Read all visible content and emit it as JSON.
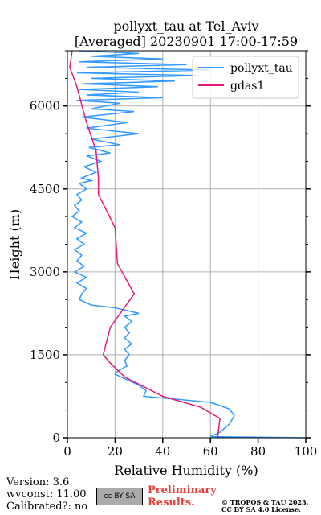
{
  "chart_data": {
    "type": "line",
    "title_line1": "pollyxt_tau at Tel_Aviv",
    "title_line2": "[Averaged] 20230901 17:00-17:59",
    "xlabel": "Relative Humidity (%)",
    "ylabel": "Height (m)",
    "xlim": [
      0,
      100
    ],
    "ylim": [
      0,
      7000
    ],
    "xticks": [
      0,
      20,
      40,
      60,
      80,
      100
    ],
    "yticks": [
      0,
      1500,
      3000,
      4500,
      6000
    ],
    "grid": true,
    "legend_position": "top-right",
    "series": [
      {
        "name": "pollyxt_tau",
        "color": "#3399ff",
        "points": [
          [
            100,
            0
          ],
          [
            60,
            20
          ],
          [
            62,
            60
          ],
          [
            64,
            100
          ],
          [
            68,
            250
          ],
          [
            70,
            400
          ],
          [
            68,
            520
          ],
          [
            60,
            640
          ],
          [
            45,
            700
          ],
          [
            32,
            750
          ],
          [
            33,
            850
          ],
          [
            30,
            950
          ],
          [
            25,
            1050
          ],
          [
            20,
            1150
          ],
          [
            21,
            1200
          ],
          [
            23,
            1250
          ],
          [
            25,
            1300
          ],
          [
            24,
            1400
          ],
          [
            26,
            1500
          ],
          [
            24,
            1600
          ],
          [
            27,
            1700
          ],
          [
            24,
            1800
          ],
          [
            26,
            1900
          ],
          [
            24,
            2000
          ],
          [
            27,
            2100
          ],
          [
            24,
            2200
          ],
          [
            30,
            2250
          ],
          [
            20,
            2350
          ],
          [
            10,
            2400
          ],
          [
            5,
            2500
          ],
          [
            6,
            2600
          ],
          [
            8,
            2700
          ],
          [
            4,
            2800
          ],
          [
            8,
            2900
          ],
          [
            3,
            3000
          ],
          [
            7,
            3100
          ],
          [
            4,
            3200
          ],
          [
            6,
            3300
          ],
          [
            3,
            3400
          ],
          [
            7,
            3500
          ],
          [
            4,
            3600
          ],
          [
            8,
            3700
          ],
          [
            3,
            3800
          ],
          [
            6,
            3900
          ],
          [
            2,
            4000
          ],
          [
            5,
            4100
          ],
          [
            3,
            4200
          ],
          [
            6,
            4300
          ],
          [
            4,
            4400
          ],
          [
            8,
            4500
          ],
          [
            5,
            4600
          ],
          [
            10,
            4650
          ],
          [
            6,
            4700
          ],
          [
            12,
            4800
          ],
          [
            7,
            4900
          ],
          [
            14,
            5000
          ],
          [
            8,
            5100
          ],
          [
            18,
            5150
          ],
          [
            9,
            5250
          ],
          [
            22,
            5300
          ],
          [
            10,
            5400
          ],
          [
            30,
            5500
          ],
          [
            8,
            5600
          ],
          [
            25,
            5700
          ],
          [
            6,
            5800
          ],
          [
            28,
            5900
          ],
          [
            10,
            5950
          ],
          [
            22,
            6050
          ],
          [
            4,
            6100
          ],
          [
            40,
            6150
          ],
          [
            8,
            6200
          ],
          [
            30,
            6250
          ],
          [
            5,
            6300
          ],
          [
            38,
            6350
          ],
          [
            6,
            6400
          ],
          [
            45,
            6450
          ],
          [
            10,
            6500
          ],
          [
            55,
            6550
          ],
          [
            4,
            6600
          ],
          [
            60,
            6650
          ],
          [
            8,
            6700
          ],
          [
            50,
            6750
          ],
          [
            5,
            6800
          ],
          [
            40,
            6850
          ],
          [
            10,
            6900
          ],
          [
            30,
            6950
          ],
          [
            5,
            7000
          ]
        ]
      },
      {
        "name": "gdas1",
        "color": "#e6197a",
        "points": [
          [
            63,
            0
          ],
          [
            64,
            350
          ],
          [
            56,
            550
          ],
          [
            40,
            750
          ],
          [
            24,
            1100
          ],
          [
            18,
            1350
          ],
          [
            15,
            1500
          ],
          [
            18,
            2000
          ],
          [
            28,
            2600
          ],
          [
            21,
            3150
          ],
          [
            20,
            3800
          ],
          [
            13,
            4400
          ],
          [
            13,
            4700
          ],
          [
            12,
            5200
          ],
          [
            8,
            5700
          ],
          [
            4,
            6350
          ],
          [
            1,
            6700
          ],
          [
            2,
            7000
          ]
        ]
      }
    ]
  },
  "footer": {
    "version": "Version: 3.6",
    "wvconst": "wvconst:  11.00",
    "calibrated": "Calibrated?: no",
    "cc_badge": "cc BY SA",
    "preliminary_line1": "Preliminary",
    "preliminary_line2": "Results.",
    "copyright_line1": "© TROPOS & TAU 2023.",
    "copyright_line2": "CC BY SA 4.0 License."
  }
}
